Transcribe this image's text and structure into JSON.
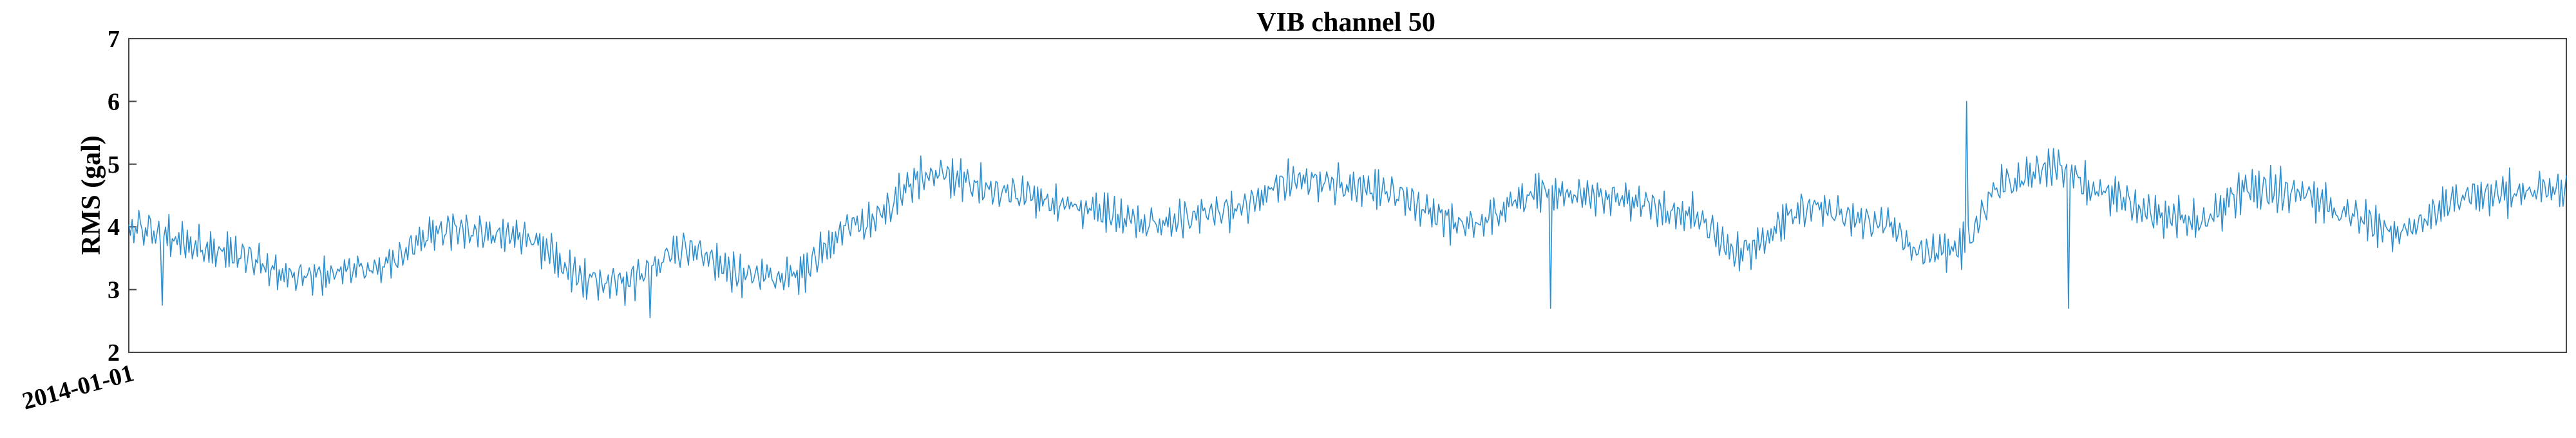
{
  "chart_data": {
    "type": "line",
    "title": "VIB channel 50",
    "xlabel": "",
    "ylabel": "RMS (gal)",
    "ylim": [
      2,
      7
    ],
    "yticks": [
      2,
      3,
      4,
      5,
      6,
      7
    ],
    "xtick_labels": [
      "2014-01-01"
    ],
    "grid": false,
    "line_color": "#2f8fce",
    "series": [
      {
        "sample_count": 1460,
        "trend_knots": [
          [
            0,
            4.0
          ],
          [
            0.04,
            3.6
          ],
          [
            0.07,
            3.2
          ],
          [
            0.1,
            3.35
          ],
          [
            0.13,
            3.95
          ],
          [
            0.16,
            3.85
          ],
          [
            0.19,
            3.15
          ],
          [
            0.2,
            3.1
          ],
          [
            0.23,
            3.65
          ],
          [
            0.25,
            3.25
          ],
          [
            0.27,
            3.2
          ],
          [
            0.3,
            4.05
          ],
          [
            0.33,
            4.85
          ],
          [
            0.36,
            4.55
          ],
          [
            0.39,
            4.3
          ],
          [
            0.42,
            4.05
          ],
          [
            0.45,
            4.25
          ],
          [
            0.48,
            4.75
          ],
          [
            0.51,
            4.6
          ],
          [
            0.55,
            4.05
          ],
          [
            0.58,
            4.55
          ],
          [
            0.61,
            4.45
          ],
          [
            0.64,
            4.2
          ],
          [
            0.66,
            3.6
          ],
          [
            0.69,
            4.3
          ],
          [
            0.72,
            4.05
          ],
          [
            0.735,
            3.6
          ],
          [
            0.75,
            3.65
          ],
          [
            0.77,
            4.7
          ],
          [
            0.79,
            4.95
          ],
          [
            0.81,
            4.55
          ],
          [
            0.835,
            4.15
          ],
          [
            0.85,
            4.1
          ],
          [
            0.87,
            4.6
          ],
          [
            0.89,
            4.55
          ],
          [
            0.91,
            4.2
          ],
          [
            0.93,
            3.9
          ],
          [
            0.96,
            4.5
          ],
          [
            1.0,
            4.6
          ]
        ],
        "noise_amplitude": 0.32,
        "peaks": [
          {
            "t": 0.0135,
            "y": 2.75
          },
          {
            "t": 0.214,
            "y": 2.55
          },
          {
            "t": 0.5835,
            "y": 2.7
          },
          {
            "t": 0.754,
            "y": 6.0
          },
          {
            "t": 0.796,
            "y": 2.7
          }
        ]
      }
    ]
  }
}
